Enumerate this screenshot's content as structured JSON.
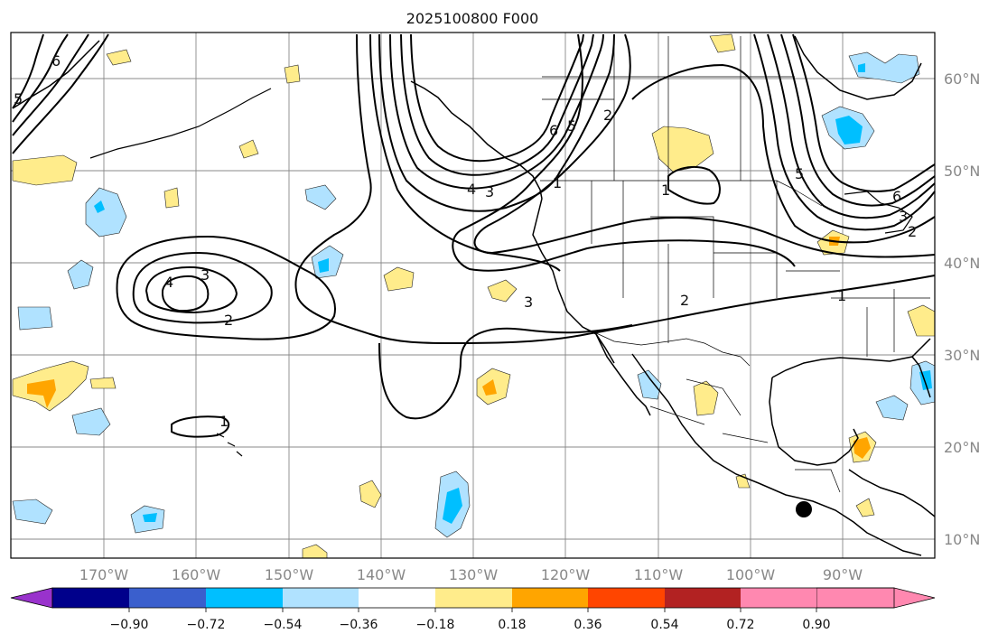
{
  "title": "2025100800 F000",
  "map": {
    "lat_labels": [
      "60°N",
      "50°N",
      "40°N",
      "30°N",
      "20°N",
      "10°N"
    ],
    "lon_labels": [
      "170°W",
      "160°W",
      "150°W",
      "140°W",
      "130°W",
      "120°W",
      "110°W",
      "100°W",
      "90°W"
    ],
    "contour_labels": [
      "6",
      "5",
      "6",
      "5",
      "2",
      "4",
      "3",
      "1",
      "1",
      "6",
      "5",
      "3",
      "2",
      "4",
      "3",
      "2",
      "3",
      "2",
      "1",
      "1"
    ],
    "marker": "storm-center-dot",
    "colors": {
      "land_outline": "#000000",
      "grid": "#888888",
      "contour": "#000000"
    }
  },
  "colorbar": {
    "ticks": [
      "−0.90",
      "−0.72",
      "−0.54",
      "−0.36",
      "−0.18",
      "0.18",
      "0.36",
      "0.54",
      "0.72",
      "0.90"
    ],
    "colors": [
      "#9932cc",
      "#00008b",
      "#3a5fcd",
      "#00bfff",
      "#b0e2ff",
      "#ffffff",
      "#ffec8b",
      "#ffa500",
      "#ff4500",
      "#b22222",
      "#ff88b0"
    ]
  }
}
